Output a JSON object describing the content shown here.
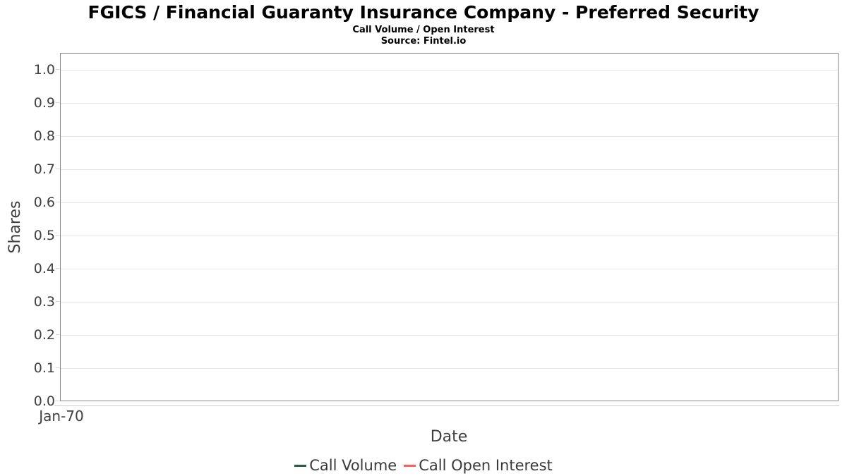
{
  "header": {
    "title": "FGICS / Financial Guaranty Insurance Company - Preferred Security",
    "subtitle": "Call Volume / Open Interest",
    "source": "Source: Fintel.io"
  },
  "chart_data": {
    "type": "line",
    "title": "FGICS / Financial Guaranty Insurance Company - Preferred Security",
    "subtitle": "Call Volume / Open Interest",
    "source": "Source: Fintel.io",
    "xlabel": "Date",
    "ylabel": "Shares",
    "ylim": [
      0.0,
      1.05
    ],
    "yticks": [
      0.0,
      0.1,
      0.2,
      0.3,
      0.4,
      0.5,
      0.6,
      0.7,
      0.8,
      0.9,
      1.0
    ],
    "ytick_labels_top_to_bottom": [
      "1.0",
      "0.9",
      "0.8",
      "0.7",
      "0.6",
      "0.5",
      "0.4",
      "0.3",
      "0.2",
      "0.1",
      "0.0"
    ],
    "xtick_labels": [
      "Jan-70"
    ],
    "grid": true,
    "legend_position": "bottom",
    "series": [
      {
        "name": "Call Volume",
        "color": "#2d5c3e",
        "x": [],
        "values": []
      },
      {
        "name": "Call Open Interest",
        "color": "#fb605a",
        "x": [],
        "values": []
      }
    ],
    "colors": {
      "plot_border": "#8a8a8a",
      "gridline": "#e6e6e6",
      "tick_mark": "#dddddd",
      "axis_line": "#cccccc",
      "tick_text": "#3f3f3f",
      "legend_text": "#3a3a3a",
      "title_text": "#000000"
    }
  }
}
